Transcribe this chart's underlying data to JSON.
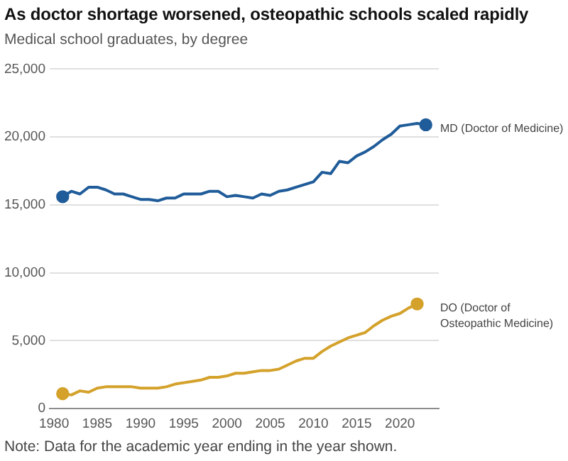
{
  "chart_data": {
    "type": "line",
    "title": "As doctor shortage worsened, osteopathic schools scaled rapidly",
    "subtitle": "Medical school graduates, by degree",
    "annotations": [
      "Note: Data for the academic year ending in the year shown."
    ],
    "series": [
      {
        "name": "MD (Doctor of Medicine)",
        "color": "#1f5c99",
        "x": [
          1981,
          1982,
          1983,
          1984,
          1985,
          1986,
          1987,
          1988,
          1989,
          1990,
          1991,
          1992,
          1993,
          1994,
          1995,
          1996,
          1997,
          1998,
          1999,
          2000,
          2001,
          2002,
          2003,
          2004,
          2005,
          2006,
          2007,
          2008,
          2009,
          2010,
          2011,
          2012,
          2013,
          2014,
          2015,
          2016,
          2017,
          2018,
          2019,
          2020,
          2021,
          2022,
          2023
        ],
        "values": [
          15600,
          16000,
          15800,
          16300,
          16300,
          16100,
          15800,
          15800,
          15600,
          15400,
          15400,
          15300,
          15500,
          15500,
          15800,
          15800,
          15800,
          16000,
          16000,
          15600,
          15700,
          15600,
          15500,
          15800,
          15700,
          16000,
          16100,
          16300,
          16500,
          16700,
          17400,
          17300,
          18200,
          18100,
          18600,
          18900,
          19300,
          19800,
          20200,
          20800,
          20900,
          21000,
          20900
        ]
      },
      {
        "name": "DO (Doctor of Osteopathic Medicine)",
        "color": "#d4a22b",
        "x": [
          1981,
          1982,
          1983,
          1984,
          1985,
          1986,
          1987,
          1988,
          1989,
          1990,
          1991,
          1992,
          1993,
          1994,
          1995,
          1996,
          1997,
          1998,
          1999,
          2000,
          2001,
          2002,
          2003,
          2004,
          2005,
          2006,
          2007,
          2008,
          2009,
          2010,
          2011,
          2012,
          2013,
          2014,
          2015,
          2016,
          2017,
          2018,
          2019,
          2020,
          2021,
          2022
        ],
        "values": [
          1100,
          1000,
          1300,
          1200,
          1500,
          1600,
          1600,
          1600,
          1600,
          1500,
          1500,
          1500,
          1600,
          1800,
          1900,
          2000,
          2100,
          2300,
          2300,
          2400,
          2600,
          2600,
          2700,
          2800,
          2800,
          2900,
          3200,
          3500,
          3700,
          3700,
          4200,
          4600,
          4900,
          5200,
          5400,
          5600,
          6100,
          6500,
          6800,
          7000,
          7400,
          7700
        ]
      },
      {
        "type": "scatter",
        "color": "#1f5c99",
        "x": [
          1981,
          2023
        ],
        "values": [
          15600,
          20900
        ]
      },
      {
        "type": "scatter",
        "color": "#d4a22b",
        "x": [
          1981,
          2022
        ],
        "values": [
          1100,
          7700
        ]
      }
    ],
    "xlim": [
      1979.5,
      2024.5
    ],
    "xticks": [
      1980,
      1985,
      1990,
      1995,
      2000,
      2005,
      2010,
      2015,
      2020
    ],
    "ylim": [
      0,
      25000
    ],
    "yticks": [
      0,
      {
        "value": 5000,
        "label": "5,000"
      },
      {
        "value": 10000,
        "label": "10,000"
      },
      {
        "value": 15000,
        "label": "15,000"
      },
      {
        "value": 20000,
        "label": "20,000"
      },
      {
        "value": 25000,
        "label": "25,000"
      }
    ],
    "grid": "y"
  }
}
